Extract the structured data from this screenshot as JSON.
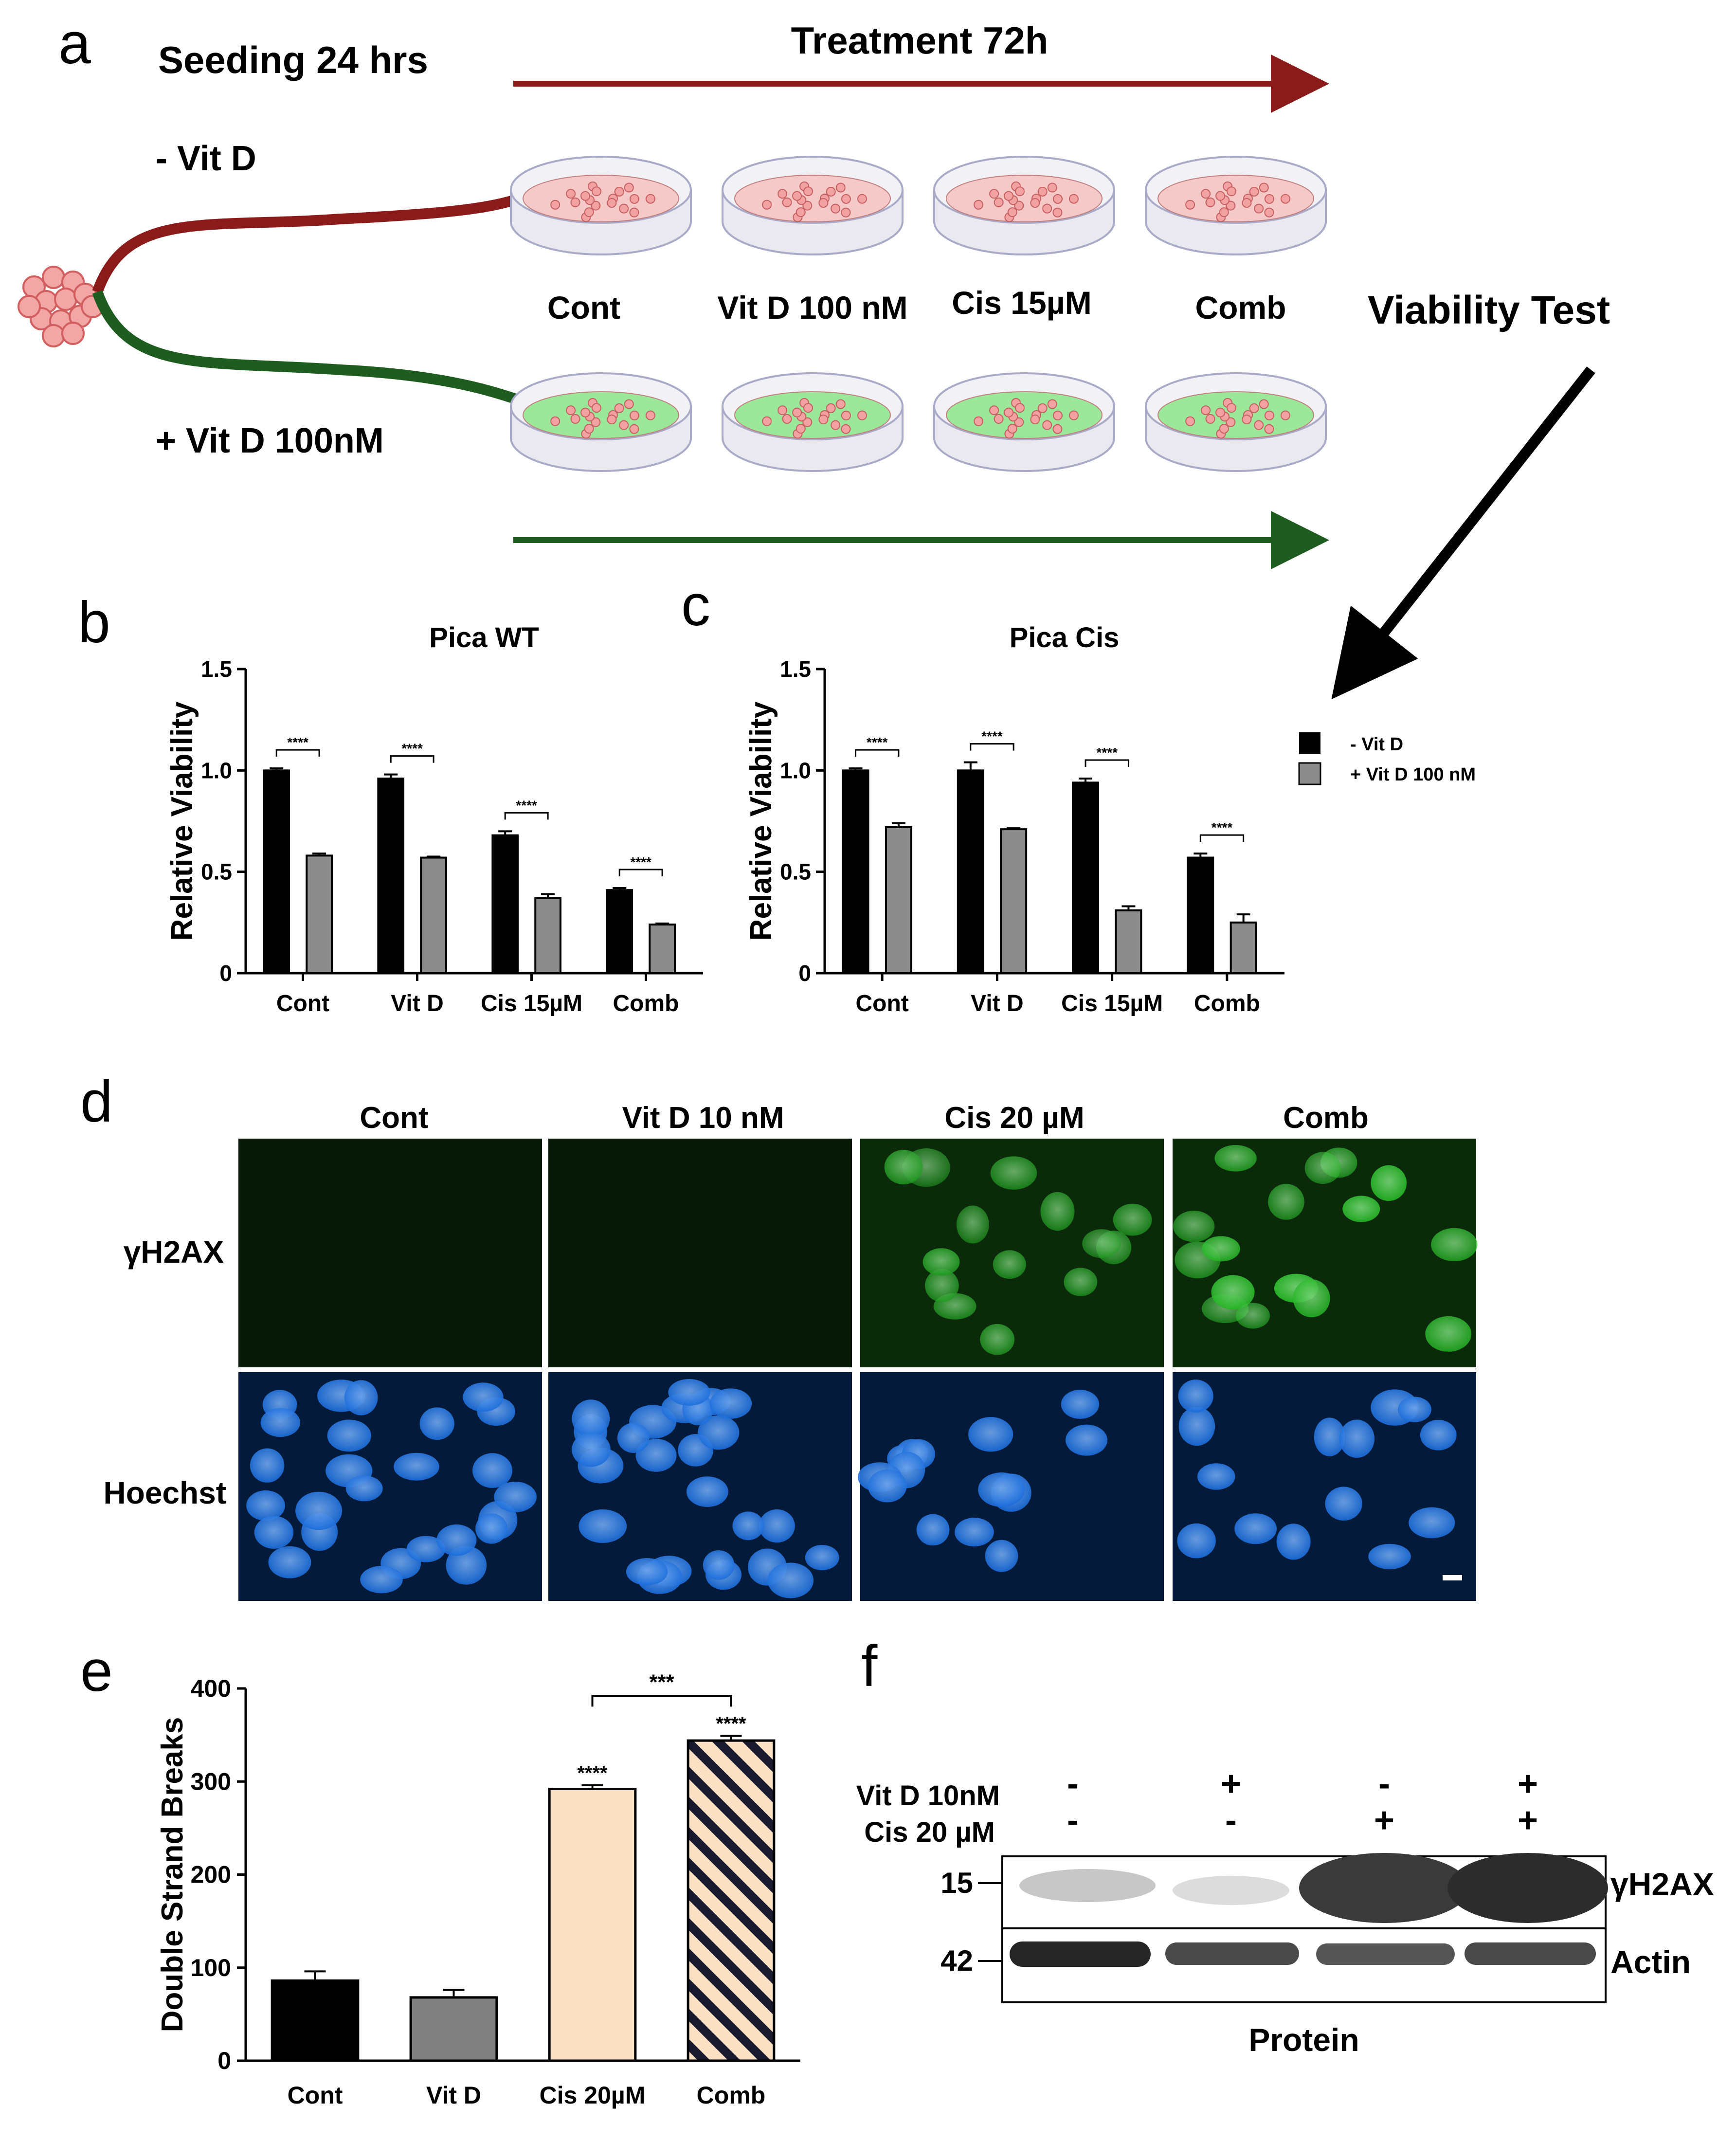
{
  "panel_a": {
    "letter": "a",
    "seeding_label": "Seeding 24 hrs",
    "treatment_label": "Treatment  72h",
    "minus_vitd_label": "- Vit D",
    "plus_vitd_label": "+ Vit D 100nM",
    "conditions": [
      "Cont",
      "Vit D 100 nM",
      "Cis 15µM",
      "Comb"
    ],
    "viability_label": "Viability Test",
    "colors": {
      "minus_arrow": "#8b1a1a",
      "plus_arrow": "#1f5c1f",
      "minus_medium": "#f6c9c9",
      "plus_medium": "#9be89b"
    }
  },
  "legend_bc": {
    "items": [
      {
        "label": "- Vit D",
        "color": "#000000"
      },
      {
        "label": "+ Vit D 100 nM",
        "color": "#8c8c8c"
      }
    ]
  },
  "panel_d": {
    "letter": "d",
    "columns": [
      "Cont",
      "Vit D 10 nM",
      "Cis 20 µM",
      "Comb"
    ],
    "rows": [
      "γH2AX",
      "Hoechst"
    ],
    "colors": {
      "gamma": "#19b519",
      "hoechst": "#1a6ddc"
    }
  },
  "panel_f": {
    "letter": "f",
    "row_labels": [
      "Vit D 10nM",
      "Cis 20 µM"
    ],
    "vitd_signs": [
      "-",
      "+",
      "-",
      "+"
    ],
    "cis_signs": [
      "-",
      "-",
      "+",
      "+"
    ],
    "marker_15": "15",
    "marker_42": "42",
    "band_labels": [
      "γH2AX",
      "Actin"
    ],
    "footer": "Protein"
  },
  "chart_data": [
    {
      "panel": "b",
      "type": "bar",
      "title": "Pica WT",
      "ylabel": "Relative Viability",
      "xlabel": "",
      "categories": [
        "Cont",
        "Vit D",
        "Cis 15µM",
        "Comb"
      ],
      "ylim": [
        0,
        1.5
      ],
      "yticks": [
        "0",
        "0.5",
        "1.0",
        "1.5"
      ],
      "series": [
        {
          "name": "- Vit D",
          "color": "#000000",
          "values": [
            1.0,
            0.96,
            0.68,
            0.41
          ],
          "errors": [
            0.01,
            0.02,
            0.02,
            0.01
          ]
        },
        {
          "name": "+ Vit D 100 nM",
          "color": "#8c8c8c",
          "values": [
            0.58,
            0.57,
            0.37,
            0.24
          ],
          "errors": [
            0.01,
            0.005,
            0.02,
            0.005
          ]
        }
      ],
      "significance": [
        "****",
        "****",
        "****",
        "****"
      ]
    },
    {
      "panel": "c",
      "type": "bar",
      "title": "Pica Cis",
      "ylabel": "Relative Viability",
      "xlabel": "",
      "categories": [
        "Cont",
        "Vit D",
        "Cis 15µM",
        "Comb"
      ],
      "ylim": [
        0,
        1.5
      ],
      "yticks": [
        "0",
        "0.5",
        "1.0",
        "1.5"
      ],
      "series": [
        {
          "name": "- Vit D",
          "color": "#000000",
          "values": [
            1.0,
            1.0,
            0.94,
            0.57
          ],
          "errors": [
            0.01,
            0.04,
            0.02,
            0.02
          ]
        },
        {
          "name": "+ Vit D 100 nM",
          "color": "#8c8c8c",
          "values": [
            0.72,
            0.71,
            0.31,
            0.25
          ],
          "errors": [
            0.02,
            0.005,
            0.02,
            0.04
          ]
        }
      ],
      "significance": [
        "****",
        "****",
        "****",
        "****"
      ]
    },
    {
      "panel": "e",
      "type": "bar",
      "title": "",
      "ylabel": "Double Strand Breaks",
      "xlabel": "",
      "categories": [
        "Cont",
        "Vit D",
        "Cis 20µM",
        "Comb"
      ],
      "ylim": [
        0,
        400
      ],
      "yticks": [
        "0",
        "100",
        "200",
        "300",
        "400"
      ],
      "values": [
        86,
        68,
        292,
        344
      ],
      "errors": [
        10,
        8,
        4,
        5
      ],
      "colors": [
        "#000000",
        "#808080",
        "#fde1c4",
        "hatched"
      ],
      "significance": [
        "",
        "",
        "****",
        "****"
      ],
      "bracket": {
        "between": [
          "Cis 20µM",
          "Comb"
        ],
        "label": "***"
      }
    }
  ]
}
